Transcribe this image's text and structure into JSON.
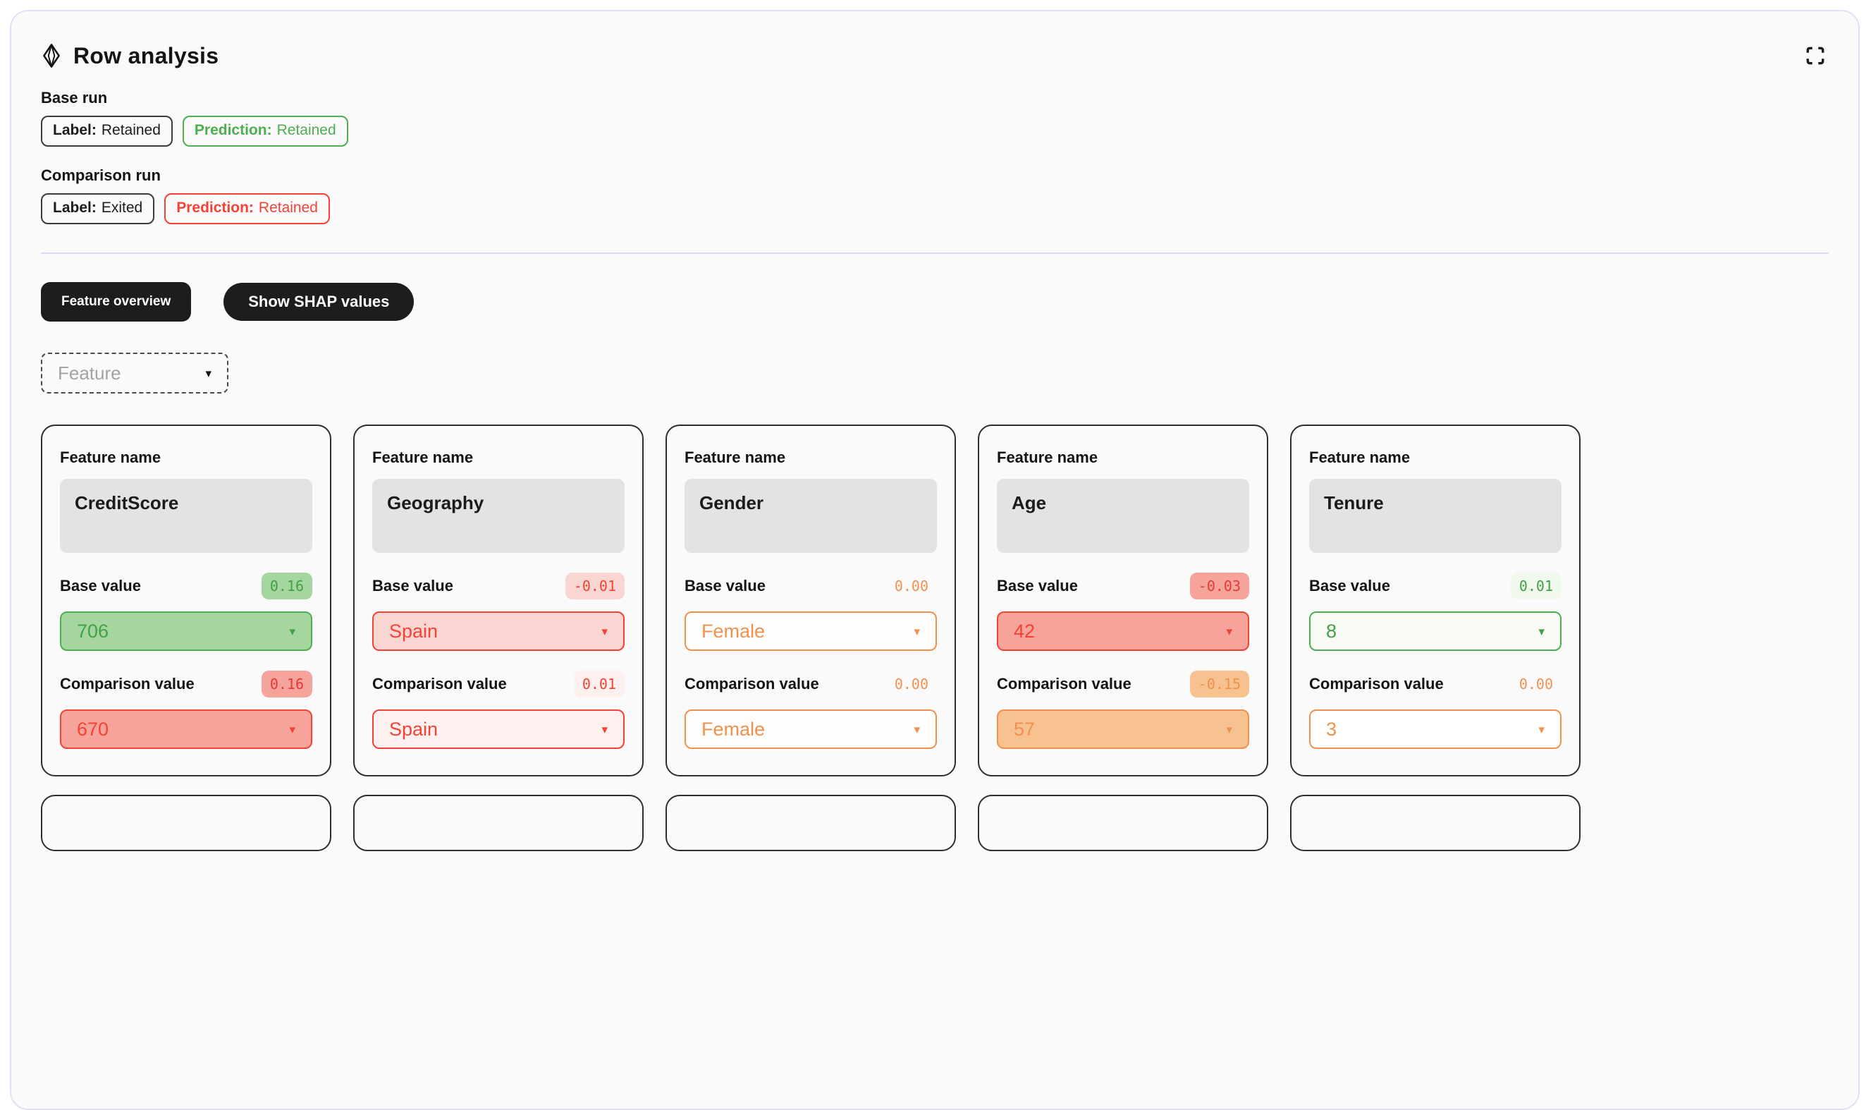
{
  "colors": {
    "green_main": "#4caf50",
    "green_text": "#43a047",
    "green_fill": "#a5d6a0",
    "green_faint": "#f1f8ee",
    "red_main": "#f44336",
    "red_fill": "#f6a49b",
    "red_light": "#f9d6d1",
    "red_faint": "#fdf0ee",
    "orange_main": "#f0914e",
    "orange_fill": "#f7c28f",
    "dark_button_bg": "#1d1d1d",
    "panel_border": "#e3dff6",
    "card_border": "#2e2e2e"
  },
  "header": {
    "title": "Row analysis",
    "title_icon": "diamond-icon",
    "expand_icon": "fullscreen-expand-icon"
  },
  "runs": [
    {
      "label": "Base run",
      "badges": [
        {
          "prefix": "Label:",
          "value": "Retained",
          "variant": "dark"
        },
        {
          "prefix": "Prediction:",
          "value": "Retained",
          "variant": "green"
        }
      ]
    },
    {
      "label": "Comparison run",
      "badges": [
        {
          "prefix": "Label:",
          "value": "Exited",
          "variant": "dark"
        },
        {
          "prefix": "Prediction:",
          "value": "Retained",
          "variant": "red"
        }
      ]
    }
  ],
  "toolbar": {
    "feature_overview_label": "Feature overview",
    "show_shap_label": "Show SHAP values"
  },
  "feature_filter": {
    "placeholder": "Feature",
    "caret": "▾"
  },
  "cards": [
    {
      "feature_label": "Feature name",
      "feature_name": "CreditScore",
      "sections": [
        {
          "label": "Base value",
          "badge": "0.16",
          "badge_bg": "#a5d6a0",
          "badge_color": "#43a047",
          "value": "706",
          "fill": "#a5d6a0",
          "border": "#4caf50",
          "text": "#43a047",
          "caret": "▾"
        },
        {
          "label": "Comparison value",
          "badge": "0.16",
          "badge_bg": "#f6a49b",
          "badge_color": "#e53935",
          "value": "670",
          "fill": "#f6a49b",
          "border": "#f44336",
          "text": "#f44336",
          "caret": "▾"
        }
      ]
    },
    {
      "feature_label": "Feature name",
      "feature_name": "Geography",
      "sections": [
        {
          "label": "Base value",
          "badge": "-0.01",
          "badge_bg": "#f9d6d1",
          "badge_color": "#f44336",
          "value": "Spain",
          "fill": "#f9d6d1",
          "border": "#f44336",
          "text": "#f44336",
          "caret": "▾"
        },
        {
          "label": "Comparison value",
          "badge": "0.01",
          "badge_bg": "#fdf0ee",
          "badge_color": "#f44336",
          "value": "Spain",
          "fill": "#fdf0ee",
          "border": "#f44336",
          "text": "#f44336",
          "caret": "▾"
        }
      ]
    },
    {
      "feature_label": "Feature name",
      "feature_name": "Gender",
      "sections": [
        {
          "label": "Base value",
          "badge": "0.00",
          "badge_bg": "transparent",
          "badge_color": "#f0914e",
          "value": "Female",
          "fill": "#fffefd",
          "border": "#f0914e",
          "text": "#f0914e",
          "caret": "▾"
        },
        {
          "label": "Comparison value",
          "badge": "0.00",
          "badge_bg": "transparent",
          "badge_color": "#f0914e",
          "value": "Female",
          "fill": "#fffefd",
          "border": "#f0914e",
          "text": "#f0914e",
          "caret": "▾"
        }
      ]
    },
    {
      "feature_label": "Feature name",
      "feature_name": "Age",
      "sections": [
        {
          "label": "Base value",
          "badge": "-0.03",
          "badge_bg": "#f6a49b",
          "badge_color": "#e53935",
          "value": "42",
          "fill": "#f6a49b",
          "border": "#f44336",
          "text": "#f44336",
          "caret": "▾"
        },
        {
          "label": "Comparison value",
          "badge": "-0.15",
          "badge_bg": "#f7c28f",
          "badge_color": "#f0914e",
          "value": "57",
          "fill": "#f7c28f",
          "border": "#f0914e",
          "text": "#f0914e",
          "caret": "▾"
        }
      ]
    },
    {
      "feature_label": "Feature name",
      "feature_name": "Tenure",
      "sections": [
        {
          "label": "Base value",
          "badge": "0.01",
          "badge_bg": "#f1f8ee",
          "badge_color": "#43a047",
          "value": "8",
          "fill": "#f7fbf4",
          "border": "#4caf50",
          "text": "#43a047",
          "caret": "▾"
        },
        {
          "label": "Comparison value",
          "badge": "0.00",
          "badge_bg": "transparent",
          "badge_color": "#f0914e",
          "value": "3",
          "fill": "#ffffff",
          "border": "#f0914e",
          "text": "#f0914e",
          "caret": "▾"
        }
      ]
    }
  ],
  "next_row_partial_cards": 5
}
